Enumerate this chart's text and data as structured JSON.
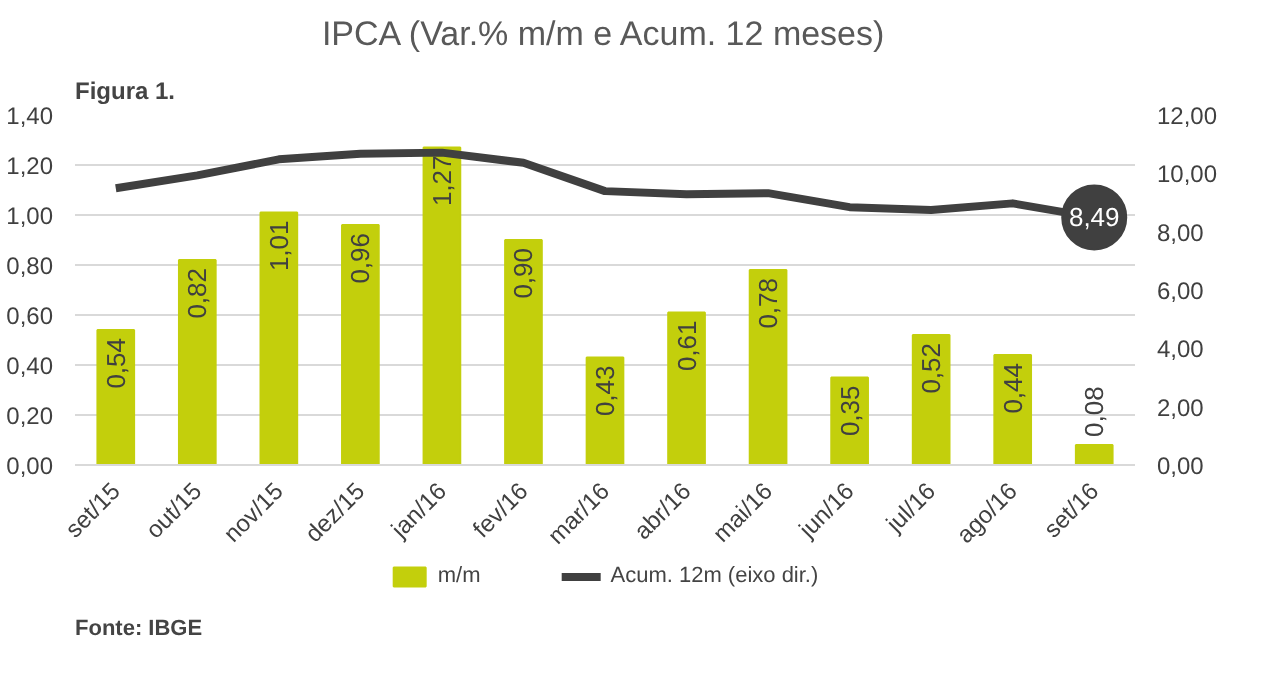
{
  "chart_data": {
    "type": "bar",
    "title": "IPCA (Var.% m/m e Acum. 12 meses)",
    "annotations": [
      "Figura 1.",
      "Fonte: IBGE"
    ],
    "categories": [
      "set/15",
      "out/15",
      "nov/15",
      "dez/15",
      "jan/16",
      "fev/16",
      "mar/16",
      "abr/16",
      "mai/16",
      "jun/16",
      "jul/16",
      "ago/16",
      "set/16"
    ],
    "series": [
      {
        "name": "m/m",
        "color": "#c3cf0c",
        "values": [
          0.54,
          0.82,
          1.01,
          0.96,
          1.27,
          0.9,
          0.43,
          0.61,
          0.78,
          0.35,
          0.52,
          0.44,
          0.08
        ],
        "value_labels": [
          "0,54",
          "0,82",
          "1,01",
          "0,96",
          "1,27",
          "0,90",
          "0,43",
          "0,61",
          "0,78",
          "0,35",
          "0,52",
          "0,44",
          "0,08"
        ]
      },
      {
        "name": "Acum. 12m (eixo dir.)",
        "type": "line",
        "axis": "y2",
        "color": "#404040",
        "values": [
          9.49,
          9.93,
          10.48,
          10.67,
          10.71,
          10.36,
          9.39,
          9.28,
          9.32,
          8.84,
          8.74,
          8.97,
          8.49
        ],
        "value_labels": [
          null,
          null,
          null,
          null,
          null,
          null,
          null,
          null,
          null,
          null,
          null,
          null,
          "8,49"
        ]
      }
    ],
    "ylim": [
      0,
      1.4
    ],
    "yticks": [
      {
        "value": 0,
        "label": "0,00"
      },
      {
        "value": 0.2,
        "label": "0,20"
      },
      {
        "value": 0.4,
        "label": "0,40"
      },
      {
        "value": 0.6,
        "label": "0,60"
      },
      {
        "value": 0.8,
        "label": "0,80"
      },
      {
        "value": 1.0,
        "label": "1,00"
      },
      {
        "value": 1.2,
        "label": "1,20"
      },
      {
        "value": 1.4,
        "label": "1,40"
      }
    ],
    "y2lim": [
      0,
      12
    ],
    "y2ticks": [
      {
        "value": 0,
        "label": "0,00"
      },
      {
        "value": 2,
        "label": "2,00"
      },
      {
        "value": 4,
        "label": "4,00"
      },
      {
        "value": 6,
        "label": "6,00"
      },
      {
        "value": 8,
        "label": "8,00"
      },
      {
        "value": 10,
        "label": "10,00"
      },
      {
        "value": 12,
        "label": "12,00"
      }
    ],
    "grid": "y",
    "legend": "bottom",
    "line_style": "solid"
  }
}
